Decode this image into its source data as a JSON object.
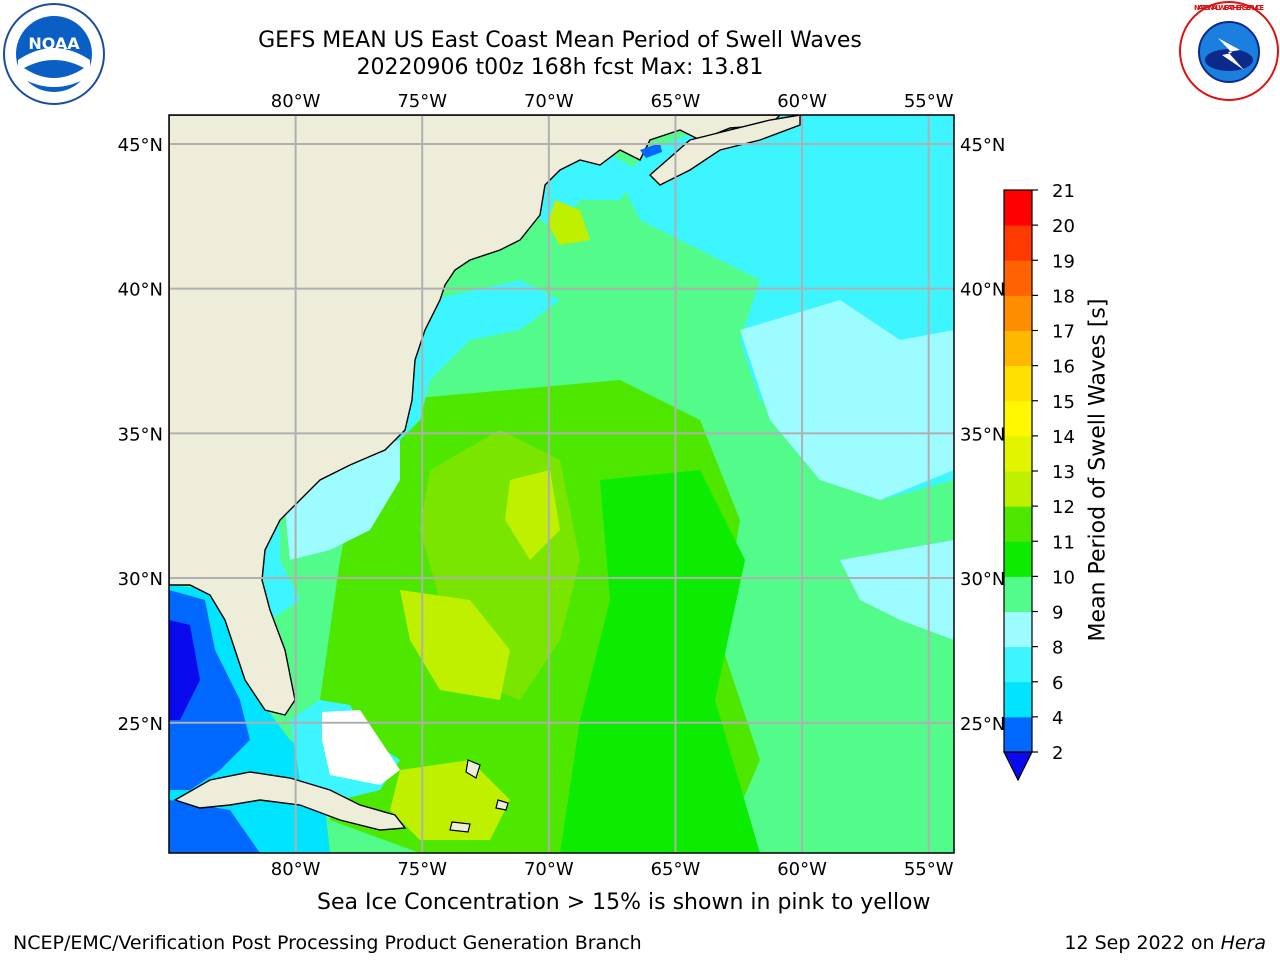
{
  "title": {
    "line1": "GEFS MEAN US East Coast Mean Period of Swell Waves",
    "line2": "20220906 t00z 168h fcst   Max: 13.81"
  },
  "logos": {
    "left": "NOAA",
    "right": "NATIONAL WEATHER SERVICE"
  },
  "map": {
    "projection": "lat-lon",
    "lon_range": [
      -85,
      -54
    ],
    "lat_range": [
      20.5,
      46
    ],
    "lon_ticks": [
      "80°W",
      "75°W",
      "70°W",
      "65°W",
      "60°W",
      "55°W"
    ],
    "lat_ticks": [
      "45°N",
      "40°N",
      "35°N",
      "30°N",
      "25°N"
    ],
    "grid": true,
    "land_color": "#eeedd9",
    "field": "Mean Period of Swell Waves",
    "max_value": 13.81
  },
  "colorbar": {
    "label": "Mean Period of Swell Waves [s]",
    "ticks": [
      "2",
      "4",
      "6",
      "8",
      "9",
      "10",
      "11",
      "12",
      "13",
      "14",
      "15",
      "16",
      "17",
      "18",
      "19",
      "20",
      "21"
    ],
    "colors": [
      "#0068ff",
      "#00e4ff",
      "#3cf5ff",
      "#9dfcff",
      "#52fb8a",
      "#0bec00",
      "#4de700",
      "#bff000",
      "#e2f400",
      "#fff800",
      "#ffe000",
      "#ffb800",
      "#ff8d00",
      "#ff6200",
      "#ff3a00",
      "#ff0000"
    ],
    "under_color": "#0a0aee"
  },
  "seaice_note": "Sea Ice Concentration > 15% is shown in pink to yellow",
  "footer": {
    "left": "NCEP/EMC/Verification Post Processing Product Generation Branch",
    "date": "12 Sep 2022 on",
    "machine": "Hera"
  }
}
